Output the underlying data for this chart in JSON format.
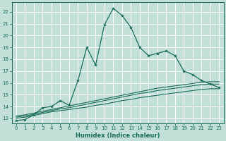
{
  "xlabel": "Humidex (Indice chaleur)",
  "ylabel": "",
  "background_color": "#c2e0d8",
  "grid_color": "#ffffff",
  "line_color": "#1a6b5a",
  "xlim": [
    -0.5,
    23.5
  ],
  "ylim": [
    12.6,
    22.8
  ],
  "xticks": [
    0,
    1,
    2,
    3,
    4,
    5,
    6,
    7,
    8,
    9,
    10,
    11,
    12,
    13,
    14,
    15,
    16,
    17,
    18,
    19,
    20,
    21,
    22,
    23
  ],
  "yticks": [
    13,
    14,
    15,
    16,
    17,
    18,
    19,
    20,
    21,
    22
  ],
  "main_x": [
    0,
    1,
    2,
    3,
    4,
    5,
    6,
    7,
    8,
    9,
    10,
    11,
    12,
    13,
    14,
    15,
    16,
    17,
    18,
    19,
    20,
    21,
    22,
    23
  ],
  "main_y": [
    12.8,
    12.9,
    13.3,
    13.9,
    14.0,
    14.5,
    14.1,
    16.2,
    19.0,
    17.5,
    20.9,
    22.3,
    21.7,
    20.7,
    19.0,
    18.3,
    18.5,
    18.7,
    18.3,
    17.0,
    16.7,
    16.2,
    15.9,
    15.6
  ],
  "flat1_x": [
    0,
    1,
    2,
    3,
    4,
    5,
    6,
    7,
    8,
    9,
    10,
    11,
    12,
    13,
    14,
    15,
    16,
    17,
    18,
    19,
    20,
    21,
    22,
    23
  ],
  "flat1_y": [
    13.0,
    13.1,
    13.25,
    13.4,
    13.55,
    13.65,
    13.75,
    13.85,
    13.95,
    14.1,
    14.2,
    14.35,
    14.5,
    14.6,
    14.75,
    14.85,
    14.95,
    15.05,
    15.15,
    15.25,
    15.35,
    15.45,
    15.5,
    15.5
  ],
  "flat2_x": [
    0,
    1,
    2,
    3,
    4,
    5,
    6,
    7,
    8,
    9,
    10,
    11,
    12,
    13,
    14,
    15,
    16,
    17,
    18,
    19,
    20,
    21,
    22,
    23
  ],
  "flat2_y": [
    13.1,
    13.2,
    13.35,
    13.5,
    13.65,
    13.8,
    13.9,
    14.05,
    14.2,
    14.35,
    14.5,
    14.65,
    14.8,
    14.95,
    15.1,
    15.2,
    15.35,
    15.45,
    15.55,
    15.65,
    15.75,
    15.85,
    15.9,
    15.9
  ],
  "flat3_x": [
    0,
    1,
    2,
    3,
    4,
    5,
    6,
    7,
    8,
    9,
    10,
    11,
    12,
    13,
    14,
    15,
    16,
    17,
    18,
    19,
    20,
    21,
    22,
    23
  ],
  "flat3_y": [
    13.2,
    13.3,
    13.45,
    13.6,
    13.75,
    13.9,
    14.05,
    14.2,
    14.35,
    14.5,
    14.65,
    14.8,
    14.95,
    15.1,
    15.25,
    15.4,
    15.55,
    15.65,
    15.75,
    15.85,
    15.95,
    16.05,
    16.1,
    16.1
  ],
  "xlabel_fontsize": 6,
  "tick_fontsize": 5
}
